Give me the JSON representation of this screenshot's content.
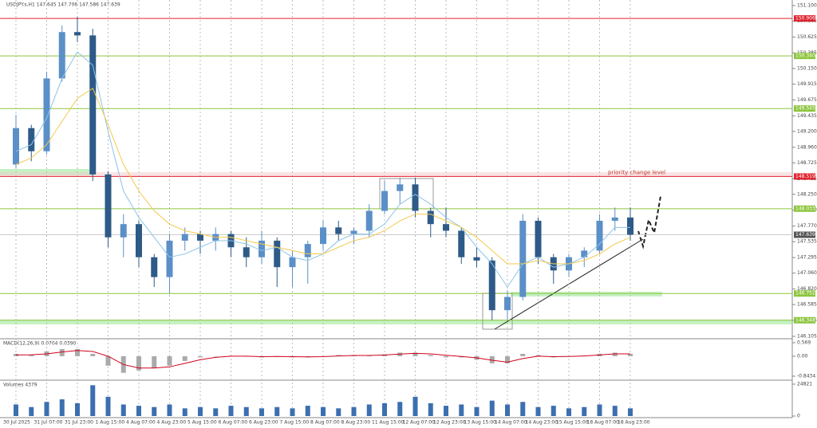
{
  "chart_data": {
    "type": "candlestick",
    "title": "USDJPY.s,H1  147.645 147.706 147.586 147.639",
    "categories": [
      "30 Jul 2025",
      null,
      "31 Jul 07:00",
      null,
      "31 Jul 23:00",
      null,
      "1 Aug 15:00",
      null,
      "4 Aug 07:00",
      null,
      "4 Aug 23:00",
      null,
      "5 Aug 15:00",
      null,
      "6 Aug 07:00",
      null,
      "6 Aug 23:00",
      null,
      "7 Aug 15:00",
      null,
      "8 Aug 07:00",
      null,
      "8 Aug 23:00",
      null,
      "11 Aug 15:00",
      null,
      "12 Aug 07:00",
      null,
      "12 Aug 23:00",
      null,
      "13 Aug 15:00",
      null,
      "14 Aug 07:00",
      null,
      "14 Aug 23:00",
      null,
      "15 Aug 15:00",
      null,
      "18 Aug 07:00",
      null,
      "18 Aug 23:00"
    ],
    "open": [
      148.7,
      149.25,
      148.9,
      150.0,
      150.7,
      150.65,
      148.55,
      147.6,
      147.8,
      147.3,
      147.0,
      147.55,
      147.65,
      147.55,
      147.65,
      147.45,
      147.3,
      147.55,
      147.15,
      147.3,
      147.5,
      147.75,
      147.65,
      147.7,
      148.0,
      148.3,
      148.4,
      148.0,
      147.8,
      147.7,
      147.3,
      147.25,
      146.5,
      146.7,
      147.85,
      147.3,
      147.1,
      147.3,
      147.4,
      147.85,
      147.9
    ],
    "high": [
      149.45,
      149.3,
      150.1,
      150.8,
      150.93,
      150.75,
      148.6,
      147.95,
      147.85,
      147.35,
      147.65,
      147.75,
      147.7,
      147.75,
      147.7,
      147.6,
      147.7,
      147.6,
      147.4,
      147.55,
      147.85,
      147.85,
      147.75,
      148.1,
      148.45,
      148.5,
      148.5,
      148.05,
      148.05,
      147.75,
      147.45,
      147.3,
      146.8,
      147.95,
      147.9,
      147.35,
      147.35,
      147.45,
      147.95,
      148.05,
      148.05
    ],
    "low": [
      148.65,
      148.75,
      148.85,
      149.95,
      150.55,
      148.45,
      147.45,
      147.3,
      147.15,
      146.85,
      146.75,
      147.4,
      147.35,
      147.4,
      147.3,
      147.15,
      147.2,
      146.85,
      146.85,
      146.9,
      147.4,
      147.55,
      147.5,
      147.6,
      147.95,
      148.1,
      147.9,
      147.6,
      147.6,
      147.2,
      147.15,
      146.35,
      146.35,
      146.65,
      147.2,
      146.9,
      147.0,
      147.15,
      147.35,
      147.7,
      147.55
    ],
    "close": [
      149.25,
      148.9,
      150.0,
      150.7,
      150.65,
      148.55,
      147.6,
      147.8,
      147.3,
      147.0,
      147.55,
      147.65,
      147.55,
      147.65,
      147.45,
      147.3,
      147.55,
      147.15,
      147.3,
      147.5,
      147.75,
      147.65,
      147.7,
      148.0,
      148.3,
      148.4,
      148.0,
      147.8,
      147.7,
      147.3,
      147.25,
      146.5,
      146.7,
      147.85,
      147.3,
      147.1,
      147.3,
      147.4,
      147.85,
      147.9,
      147.64
    ],
    "up_color": "#5b8fc7",
    "down_color": "#2e5a88",
    "ma_fast": {
      "color": "#8cc4e8",
      "values": [
        148.9,
        149.0,
        149.4,
        150.0,
        150.4,
        150.2,
        149.2,
        148.3,
        147.9,
        147.6,
        147.3,
        147.35,
        147.45,
        147.55,
        147.55,
        147.5,
        147.4,
        147.45,
        147.3,
        147.25,
        147.35,
        147.55,
        147.65,
        147.65,
        147.8,
        148.1,
        148.25,
        148.1,
        147.9,
        147.75,
        147.45,
        147.2,
        146.85,
        147.2,
        147.3,
        147.15,
        147.2,
        147.3,
        147.5,
        147.75,
        147.75
      ]
    },
    "ma_slow": {
      "color": "#f2c94c",
      "values": [
        148.7,
        148.8,
        149.0,
        149.35,
        149.7,
        149.85,
        149.3,
        148.7,
        148.3,
        148.0,
        147.8,
        147.7,
        147.65,
        147.6,
        147.6,
        147.55,
        147.5,
        147.45,
        147.4,
        147.35,
        147.35,
        147.45,
        147.55,
        147.6,
        147.7,
        147.85,
        147.95,
        147.95,
        147.85,
        147.75,
        147.6,
        147.4,
        147.2,
        147.2,
        147.25,
        147.2,
        147.2,
        147.25,
        147.35,
        147.5,
        147.6
      ]
    },
    "ylim": [
      146.105,
      151.1
    ],
    "yticks": [
      {
        "value": 151.1,
        "label": "151.100"
      },
      150.865,
      150.625,
      150.385,
      {
        "value": 150.15,
        "label": "150.150"
      },
      149.915,
      149.675,
      149.435,
      {
        "value": 149.2,
        "label": "149.200"
      },
      {
        "value": 148.96,
        "label": "148.960"
      },
      148.725,
      148.485,
      {
        "value": 148.25,
        "label": "148.250"
      },
      {
        "value": 148.01,
        "label": "148.010"
      },
      {
        "value": 147.77,
        "label": "147.770"
      },
      147.535,
      147.295,
      {
        "value": 147.06,
        "label": "147.060"
      },
      {
        "value": 146.82,
        "label": "146.820"
      },
      146.585,
      146.345,
      146.105
    ],
    "grid": true,
    "levels": [
      {
        "value": 150.906,
        "color": "#e0242f"
      },
      {
        "value": 150.34,
        "label": "150.340",
        "color": "#8dc63f"
      },
      {
        "value": 149.545,
        "color": "#8dc63f"
      },
      {
        "value": 148.519,
        "color": "#e0242f",
        "text": "priority change level"
      },
      {
        "value": 148.033,
        "color": "#8dc63f"
      },
      {
        "value": 146.752,
        "color": "#8dc63f"
      },
      {
        "value": 146.348,
        "color": "#8dc63f"
      }
    ],
    "last_price": 147.639,
    "macd": {
      "label": "MACD(12,26,9) 0.0704 0.0390",
      "ylim": [
        -0.8434,
        0.569
      ],
      "yticks": [
        0.569,
        {
          "value": 0,
          "label": "0.00"
        },
        -0.8434
      ],
      "histogram": [
        0.1,
        0.05,
        0.2,
        0.3,
        0.3,
        0.1,
        -0.4,
        -0.7,
        -0.6,
        -0.5,
        -0.4,
        -0.2,
        -0.05,
        0.0,
        0.02,
        0.0,
        -0.05,
        0.0,
        -0.05,
        -0.05,
        0.0,
        0.05,
        0.05,
        0.03,
        0.08,
        0.15,
        0.15,
        0.05,
        -0.05,
        -0.05,
        -0.15,
        -0.3,
        -0.3,
        0.1,
        0.05,
        -0.05,
        0.0,
        0.03,
        0.1,
        0.15,
        0.1
      ],
      "signal": [
        0.05,
        0.06,
        0.1,
        0.18,
        0.24,
        0.2,
        0.0,
        -0.35,
        -0.5,
        -0.5,
        -0.45,
        -0.3,
        -0.15,
        -0.05,
        0.0,
        0.0,
        -0.02,
        -0.01,
        -0.02,
        -0.03,
        -0.02,
        0.01,
        0.03,
        0.03,
        0.05,
        0.09,
        0.12,
        0.1,
        0.04,
        -0.01,
        -0.07,
        -0.17,
        -0.25,
        -0.1,
        0.0,
        -0.02,
        -0.01,
        0.01,
        0.05,
        0.1,
        0.1
      ],
      "hist_color": "#aaaaaa",
      "signal_color": "#d0021b"
    },
    "volume": {
      "label": "Volumes 4379",
      "ylim": [
        0,
        24821
      ],
      "yticks": [
        24821,
        0
      ],
      "color": "#3b6fb0",
      "values": [
        9000,
        7000,
        11000,
        13000,
        10000,
        24000,
        15000,
        9000,
        8000,
        7000,
        9000,
        6000,
        7000,
        6000,
        8000,
        7000,
        6000,
        7000,
        6000,
        8000,
        7000,
        6000,
        7000,
        9000,
        10000,
        11000,
        15000,
        10000,
        8000,
        9000,
        7000,
        12000,
        9000,
        11000,
        7000,
        8000,
        6000,
        7000,
        9000,
        8000,
        6000
      ]
    }
  }
}
